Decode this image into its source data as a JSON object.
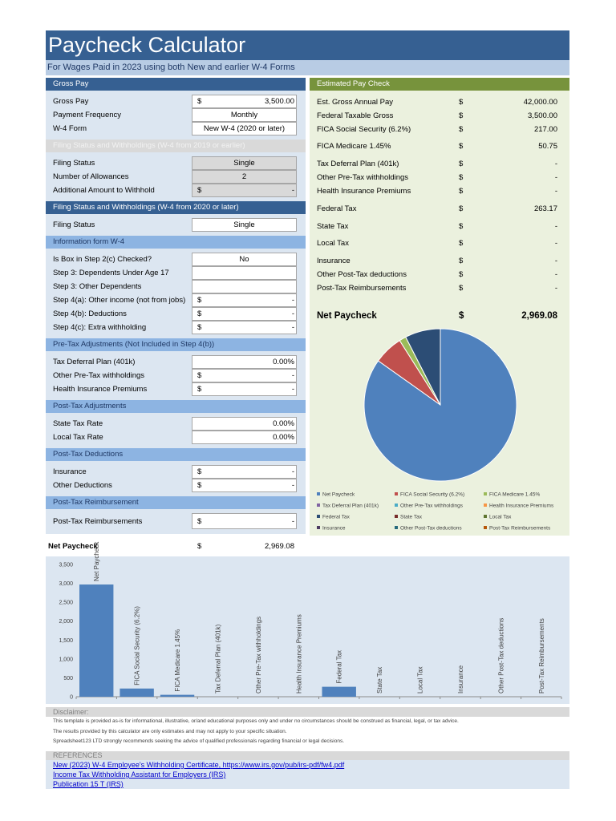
{
  "header": {
    "title": "Paycheck Calculator",
    "subtitle": "For Wages Paid in 2023 using both New and earlier W-4 Forms"
  },
  "left": {
    "sections": [
      {
        "title": "Gross Pay",
        "rows": [
          {
            "label": "Gross Pay",
            "currency": "$",
            "value": "3,500.00"
          },
          {
            "label": "Payment Frequency",
            "value": "Monthly"
          },
          {
            "label": "W-4 Form",
            "value": "New W-4 (2020 or later)"
          }
        ]
      },
      {
        "title": "Filing Status and Withholdings (W-4 from 2019 or earlier)",
        "rows": [
          {
            "label": "Filing Status",
            "value": "Single"
          },
          {
            "label": "Number of Allowances",
            "value": "2"
          },
          {
            "label": "Additional Amount to Withhold",
            "currency": "$",
            "value": "-"
          }
        ]
      },
      {
        "title": "Filing Status and Withholdings (W-4 from 2020 or later)",
        "rows": [
          {
            "label": "Filing Status",
            "value": "Single"
          }
        ]
      },
      {
        "title": "Information form W-4",
        "rows": [
          {
            "label": "Is Box in Step 2(c) Checked?",
            "value": "No"
          },
          {
            "label": "Step 3: Dependents Under Age 17"
          },
          {
            "label": "Step 3: Other Dependents"
          },
          {
            "label": "Step 4(a): Other income (not from jobs)",
            "currency": "$",
            "value": "-"
          },
          {
            "label": "Step 4(b): Deductions",
            "currency": "$",
            "value": "-"
          },
          {
            "label": "Step 4(c): Extra withholding",
            "currency": "$",
            "value": "-"
          }
        ]
      },
      {
        "title": "Pre-Tax Adjustments (Not Included in Step 4(b))",
        "rows": [
          {
            "label": "Tax Deferral Plan (401k)",
            "value": "0.00%"
          },
          {
            "label": "Other Pre-Tax withholdings",
            "currency": "$",
            "value": "-"
          },
          {
            "label": "Health Insurance Premiums",
            "currency": "$",
            "value": "-"
          }
        ]
      },
      {
        "title": "Post-Tax Adjustments",
        "rows": [
          {
            "label": "State Tax Rate",
            "value": "0.00%"
          },
          {
            "label": "Local Tax Rate",
            "value": "0.00%"
          }
        ]
      },
      {
        "title": "Post-Tax Deductions",
        "rows": [
          {
            "label": "Insurance",
            "currency": "$",
            "value": "-"
          },
          {
            "label": "Other Deductions",
            "currency": "$",
            "value": "-"
          }
        ]
      },
      {
        "title": "Post-Tax Reimbursement",
        "rows": [
          {
            "label": "Post-Tax Reimbursements",
            "currency": "$",
            "value": "-"
          }
        ]
      }
    ]
  },
  "right": {
    "title": "Estimated Pay Check",
    "rows": [
      {
        "label": "Est. Gross Annual Pay",
        "currency": "$",
        "value": "42,000.00"
      },
      {
        "label": "Federal Taxable Gross",
        "currency": "$",
        "value": "3,500.00"
      },
      {
        "label": "FICA Social Security (6.2%)",
        "currency": "$",
        "value": "217.00"
      },
      {
        "label": "FICA Medicare 1.45%",
        "currency": "$",
        "value": "50.75"
      },
      {
        "label": "Tax Deferral Plan (401k)",
        "currency": "$",
        "value": "-"
      },
      {
        "label": "Other Pre-Tax withholdings",
        "currency": "$",
        "value": "-"
      },
      {
        "label": "Health Insurance Premiums",
        "currency": "$",
        "value": "-"
      },
      {
        "label": "Federal Tax",
        "currency": "$",
        "value": "263.17"
      },
      {
        "label": "State Tax",
        "currency": "$",
        "value": "-"
      },
      {
        "label": "Local Tax",
        "currency": "$",
        "value": "-"
      },
      {
        "label": "Insurance",
        "currency": "$",
        "value": "-"
      },
      {
        "label": "Other Post-Tax deductions",
        "currency": "$",
        "value": "-"
      },
      {
        "label": "Post-Tax Reimbursements",
        "currency": "$",
        "value": "-"
      },
      {
        "label": "Net Paycheck",
        "currency": "$",
        "value": "2,969.08"
      }
    ]
  },
  "summary": {
    "label": "Net Paycheck",
    "currency": "$",
    "value": "2,969.08"
  },
  "chart_data": [
    {
      "type": "pie",
      "categories": [
        "Net Paycheck",
        "FICA Social Security (6.2%)",
        "FICA Medicare 1.45%",
        "Tax Deferral Plan (401k)",
        "Other Pre-Tax withholdings",
        "Health Insurance Premiums",
        "Federal Tax",
        "State Tax",
        "Local Tax",
        "Insurance",
        "Other Post-Tax deductions",
        "Post-Tax Reimbursements"
      ],
      "values": [
        2969.08,
        217,
        50.75,
        0,
        0,
        0,
        263.17,
        0,
        0,
        0,
        0,
        0
      ],
      "colors": [
        "#4f81bd",
        "#c0504d",
        "#9bbb59",
        "#8064a2",
        "#4bacc6",
        "#f79646",
        "#2c4d75",
        "#772c2a",
        "#5f7530",
        "#4d3b62",
        "#276a7c",
        "#b65708"
      ],
      "legend": "bottom"
    },
    {
      "type": "bar",
      "categories": [
        "Net Paycheck",
        "FICA Social Security (6.2%)",
        "FICA Medicare 1.45%",
        "Tax Deferral Plan (401k)",
        "Other Pre-Tax withholdings",
        "Health Insurance Premiums",
        "Federal Tax",
        "State Tax",
        "Local Tax",
        "Insurance",
        "Other Post-Tax deductions",
        "Post-Tax Reimbursements"
      ],
      "values": [
        2969.08,
        217,
        50.75,
        0,
        0,
        0,
        263.17,
        0,
        0,
        0,
        0,
        0
      ],
      "color": "#4f81bd",
      "ylim": [
        0,
        3500
      ],
      "yticks": [
        0,
        500,
        {
          "value": 1000,
          "label": "1,000"
        },
        {
          "value": 1500,
          "label": "1,500"
        },
        {
          "value": 2000,
          "label": "2,000"
        },
        {
          "value": 2500,
          "label": "2,500"
        },
        {
          "value": 3000,
          "label": "3,000"
        },
        {
          "value": 3500,
          "label": "3,500"
        }
      ],
      "grid": false
    }
  ],
  "disclaimer": {
    "title": "Disclaimer:",
    "lines": [
      "This template is provided as-is for informational, illustrative, or/and educational purposes only and under no circumstances should be construed as financial, legal, or tax advice.",
      "The results provided by this calculator are only estimates and may not apply to your specific situation.",
      "Spreadsheet123 LTD strongly recommends seeking the advice of qualified professionals regarding financial or legal decisions."
    ]
  },
  "references": {
    "title": "REFERENCES",
    "links": [
      "New (2023) W-4 Employee's Withholding Certificate, https://www.irs.gov/pub/irs-pdf/fw4.pdf",
      "Income Tax Withholding Assistant for Employers (IRS)",
      "Publication 15 T (IRS)"
    ]
  }
}
